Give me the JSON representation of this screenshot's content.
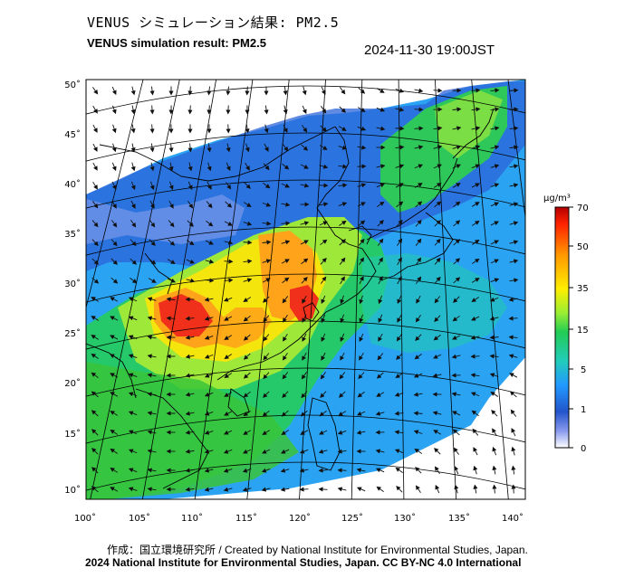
{
  "header": {
    "title_ja": "VENUS シミュレーション結果: PM2.5",
    "title_en": "VENUS simulation result: PM2.5",
    "datetime": "2024-11-30 19:00JST"
  },
  "map": {
    "lat_labels": [
      "50˚",
      "45˚",
      "40˚",
      "35˚",
      "30˚",
      "25˚",
      "20˚",
      "15˚",
      "10˚"
    ],
    "lon_labels": [
      "100˚",
      "105˚",
      "110˚",
      "115˚",
      "120˚",
      "125˚",
      "130˚",
      "135˚",
      "140˚"
    ]
  },
  "colorbar": {
    "unit": "μg/m³",
    "ticks": [
      "70",
      "50",
      "35",
      "15",
      "5",
      "1",
      "0"
    ],
    "colors": [
      "#b30000",
      "#ff3300",
      "#ff9900",
      "#ffee00",
      "#99ee33",
      "#22cc55",
      "#22ccbb",
      "#2299ff",
      "#2255cc",
      "#8899ee",
      "#ffffff"
    ]
  },
  "footer": {
    "credit": "作成：国立環境研究所 / Created by National Institute for Environmental Studies, Japan.",
    "copyright": "2024 National Institute for Environmental Studies, Japan. CC BY-NC 4.0 International"
  }
}
